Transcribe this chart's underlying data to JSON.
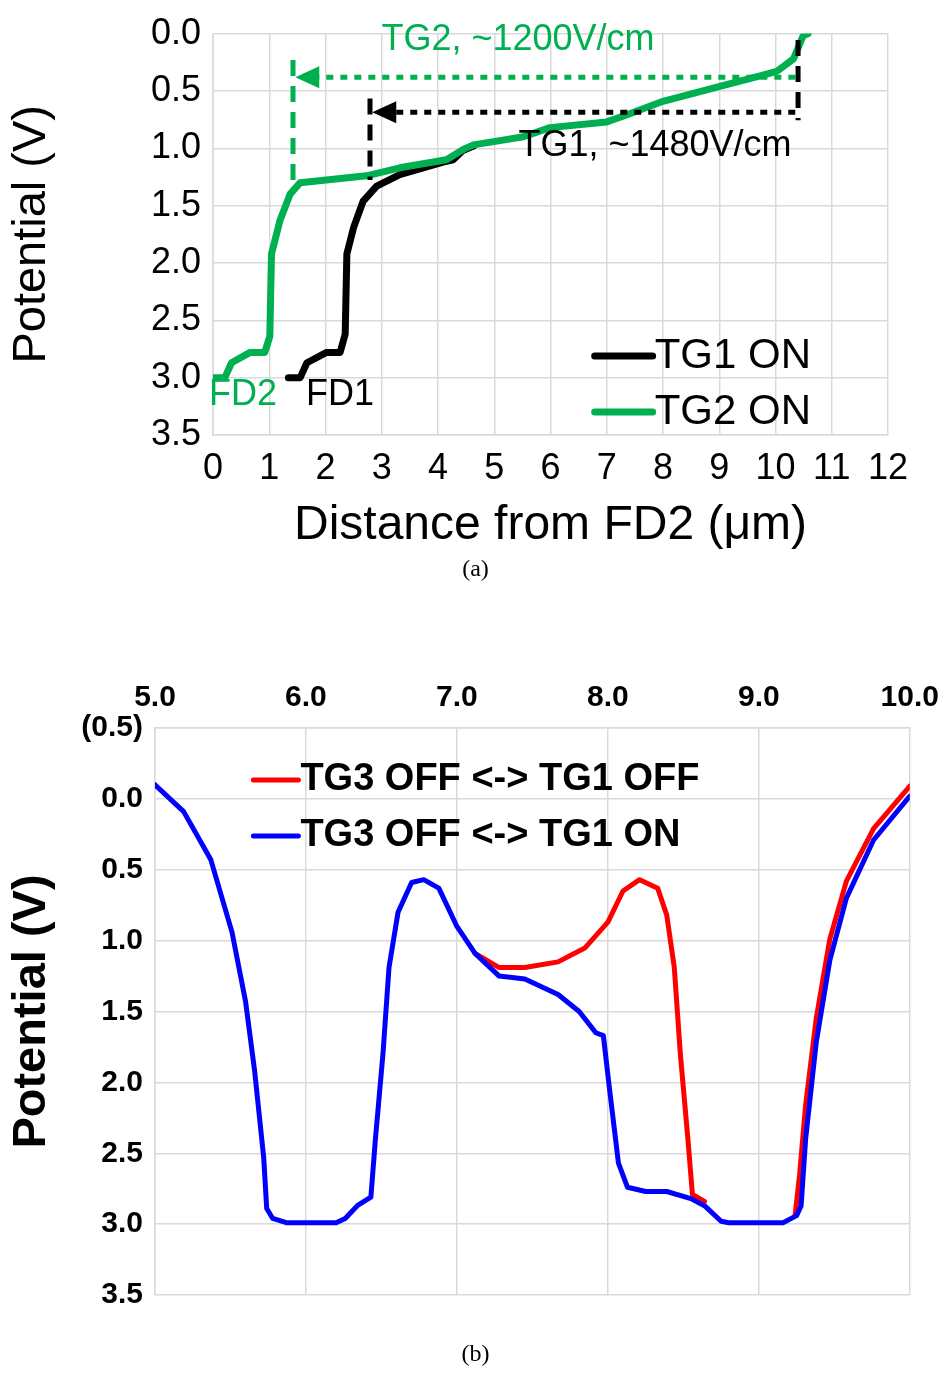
{
  "chart_data": [
    {
      "type": "line",
      "xlabel": "Distance from FD2 (μm)",
      "ylabel": "Potential (V)",
      "xlim": [
        0,
        12
      ],
      "xticks": [
        0,
        1,
        2,
        3,
        4,
        5,
        6,
        7,
        8,
        9,
        10,
        11,
        12
      ],
      "ylim": [
        3.5,
        0
      ],
      "yticks": [
        {
          "value": 0,
          "label": "0.0"
        },
        {
          "value": 0.5,
          "label": "0.5"
        },
        {
          "value": 1,
          "label": "1.0"
        },
        {
          "value": 1.5,
          "label": "1.5"
        },
        {
          "value": 2,
          "label": "2.0"
        },
        {
          "value": 2.5,
          "label": "2.5"
        },
        {
          "value": 3,
          "label": "3.0"
        },
        {
          "value": 3.5,
          "label": "3.5"
        }
      ],
      "grid": true,
      "legend": "bottom right",
      "series": [
        {
          "name": "TG1 ON",
          "color": "#000000",
          "x": [
            1.34,
            1.55,
            1.67,
            2.02,
            2.26,
            2.35,
            2.38,
            2.5,
            2.67,
            2.91,
            3.32,
            4.09,
            4.27,
            4.44,
            4.63
          ],
          "values": [
            3.0,
            3.0,
            2.87,
            2.78,
            2.78,
            2.62,
            1.92,
            1.69,
            1.46,
            1.33,
            1.23,
            1.12,
            1.1,
            1.02,
            0.98
          ]
        },
        {
          "name": "TG2 ON",
          "color": "#00b050",
          "x": [
            0,
            0.21,
            0.33,
            0.66,
            0.92,
            1.01,
            1.04,
            1.19,
            1.37,
            1.55,
            2.73,
            3.32,
            4.15,
            4.45,
            4.63,
            5.52,
            5.99,
            7.0,
            7.35,
            8.0,
            9.01,
            10.02,
            10.32,
            10.49,
            10.58
          ],
          "values": [
            3.0,
            3.0,
            2.87,
            2.78,
            2.78,
            2.64,
            1.92,
            1.63,
            1.4,
            1.3,
            1.24,
            1.17,
            1.1,
            1.01,
            0.97,
            0.9,
            0.82,
            0.77,
            0.71,
            0.59,
            0.46,
            0.33,
            0.22,
            0.02,
            0.0
          ]
        }
      ],
      "annotations": [
        "TG2, ~1200V/cm",
        "TG1, ~1480V/cm",
        "FD2",
        "FD1",
        "(a)"
      ]
    },
    {
      "type": "line",
      "ylabel": "Potential (V)",
      "xlim": [
        5,
        10
      ],
      "xticks": [
        {
          "value": 5,
          "label": "5.0"
        },
        {
          "value": 6,
          "label": "6.0"
        },
        {
          "value": 7,
          "label": "7.0"
        },
        {
          "value": 8,
          "label": "8.0"
        },
        {
          "value": 9,
          "label": "9.0"
        },
        {
          "value": 10,
          "label": "10.0"
        }
      ],
      "ylim": [
        3.5,
        -0.5
      ],
      "yticks": [
        {
          "value": -0.5,
          "label": "(0.5)"
        },
        {
          "value": 0,
          "label": "0.0"
        },
        {
          "value": 0.5,
          "label": "0.5"
        },
        {
          "value": 1,
          "label": "1.0"
        },
        {
          "value": 1.5,
          "label": "1.5"
        },
        {
          "value": 2,
          "label": "2.0"
        },
        {
          "value": 2.5,
          "label": "2.5"
        },
        {
          "value": 3,
          "label": "3.0"
        },
        {
          "value": 3.5,
          "label": "3.5"
        }
      ],
      "grid": true,
      "legend": "top",
      "series": [
        {
          "name": "TG3 OFF <-> TG1 OFF",
          "color": "#ff0000",
          "x": [
            7.12,
            7.28,
            7.45,
            7.67,
            7.85,
            8.0,
            8.1,
            8.21,
            8.33,
            8.39,
            8.44,
            8.48,
            8.53,
            8.56,
            8.64,
            8.75,
            8.8,
            9.16,
            9.24,
            9.27,
            9.31,
            9.38,
            9.47,
            9.58,
            9.76,
            10.0
          ],
          "values": [
            1.09,
            1.19,
            1.19,
            1.15,
            1.05,
            0.87,
            0.65,
            0.57,
            0.63,
            0.82,
            1.19,
            1.8,
            2.4,
            2.79,
            2.84,
            null,
            null,
            null,
            2.94,
            2.65,
            2.16,
            1.55,
            0.99,
            0.58,
            0.21,
            -0.09
          ]
        },
        {
          "name": "TG3 OFF <-> TG1 ON",
          "color": "#0000ff",
          "x": [
            5.0,
            5.19,
            5.37,
            5.51,
            5.6,
            5.66,
            5.72,
            5.74,
            5.78,
            5.87,
            6.2,
            6.26,
            6.34,
            6.43,
            6.46,
            6.51,
            6.55,
            6.61,
            6.7,
            6.78,
            6.88,
            7.0,
            7.12,
            7.28,
            7.45,
            7.67,
            7.81,
            7.92,
            7.97,
            8.01,
            8.07,
            8.13,
            8.25,
            8.39,
            8.55,
            8.64,
            8.75,
            8.8,
            9.16,
            9.25,
            9.28,
            9.31,
            9.38,
            9.47,
            9.58,
            9.76,
            10.0
          ],
          "values": [
            -0.1,
            0.09,
            0.43,
            0.94,
            1.43,
            1.92,
            2.53,
            2.89,
            2.96,
            2.99,
            2.99,
            2.96,
            2.87,
            2.81,
            2.4,
            1.8,
            1.19,
            0.8,
            0.59,
            0.57,
            0.63,
            0.9,
            1.09,
            1.25,
            1.27,
            1.38,
            1.5,
            1.65,
            1.67,
            2.04,
            2.57,
            2.74,
            2.77,
            2.77,
            2.82,
            2.87,
            2.98,
            2.99,
            2.99,
            2.94,
            2.87,
            2.4,
            1.72,
            1.14,
            0.7,
            0.29,
            -0.02
          ]
        }
      ],
      "annotations": [
        "(b)"
      ]
    }
  ]
}
